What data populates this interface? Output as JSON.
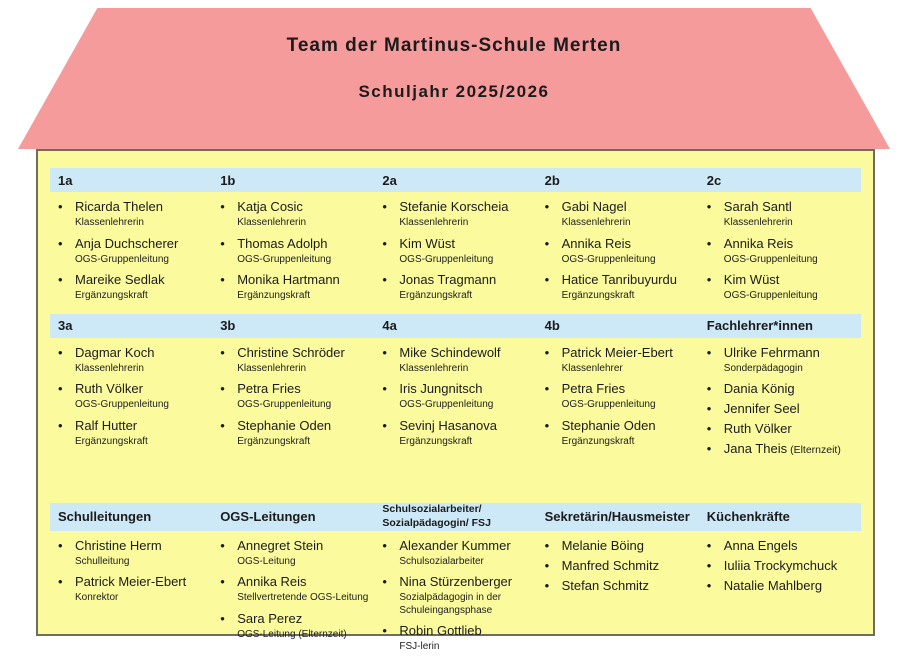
{
  "title": {
    "line1": "Team der Martinus-Schule Merten",
    "line2": "Schuljahr 2025/2026"
  },
  "colors": {
    "roof": "#f69b9b",
    "wall": "#fbfb9e",
    "header_band": "#cde9f8",
    "text": "#1b1b1b"
  },
  "rows": [
    {
      "columns": [
        {
          "header_lines": [
            "1a"
          ],
          "members": [
            {
              "name": "Ricarda Thelen",
              "role": "Klassenlehrerin"
            },
            {
              "name": "Anja Duchscherer",
              "role": "OGS-Gruppenleitung"
            },
            {
              "name": "Mareike Sedlak",
              "role": "Ergänzungskraft"
            }
          ]
        },
        {
          "header_lines": [
            "1b"
          ],
          "members": [
            {
              "name": "Katja Cosic",
              "role": "Klassenlehrerin"
            },
            {
              "name": "Thomas Adolph",
              "role": "OGS-Gruppenleitung"
            },
            {
              "name": "Monika Hartmann",
              "role": "Ergänzungskraft"
            }
          ]
        },
        {
          "header_lines": [
            "2a"
          ],
          "members": [
            {
              "name": "Stefanie Korscheia",
              "role": "Klassenlehrerin"
            },
            {
              "name": "Kim Wüst",
              "role": "OGS-Gruppenleitung"
            },
            {
              "name": "Jonas Tragmann",
              "role": "Ergänzungskraft"
            }
          ]
        },
        {
          "header_lines": [
            "2b"
          ],
          "members": [
            {
              "name": "Gabi Nagel",
              "role": "Klassenlehrerin"
            },
            {
              "name": "Annika Reis",
              "role": "OGS-Gruppenleitung"
            },
            {
              "name": "Hatice Tanribuyurdu",
              "role": "Ergänzungskraft"
            }
          ]
        },
        {
          "header_lines": [
            "2c"
          ],
          "members": [
            {
              "name": "Sarah Santl",
              "role": "Klassenlehrerin"
            },
            {
              "name": "Annika Reis",
              "role": "OGS-Gruppenleitung"
            },
            {
              "name": "Kim Wüst",
              "role": "OGS-Gruppenleitung"
            }
          ]
        }
      ]
    },
    {
      "columns": [
        {
          "header_lines": [
            "3a"
          ],
          "members": [
            {
              "name": "Dagmar Koch",
              "role": "Klassenlehrerin"
            },
            {
              "name": "Ruth Völker",
              "role": "OGS-Gruppenleitung"
            },
            {
              "name": "Ralf Hutter",
              "role": "Ergänzungskraft"
            }
          ]
        },
        {
          "header_lines": [
            "3b"
          ],
          "members": [
            {
              "name": "Christine Schröder",
              "role": "Klassenlehrerin"
            },
            {
              "name": "Petra Fries",
              "role": "OGS-Gruppenleitung"
            },
            {
              "name": "Stephanie Oden",
              "role": "Ergänzungskraft"
            }
          ]
        },
        {
          "header_lines": [
            "4a"
          ],
          "members": [
            {
              "name": "Mike Schindewolf",
              "role": "Klassenlehrerin"
            },
            {
              "name": "Iris Jungnitsch",
              "role": "OGS-Gruppenleitung"
            },
            {
              "name": "Sevinj Hasanova",
              "role": "Ergänzungskraft"
            }
          ]
        },
        {
          "header_lines": [
            "4b"
          ],
          "members": [
            {
              "name": "Patrick Meier-Ebert",
              "role": "Klassenlehrer"
            },
            {
              "name": "Petra Fries",
              "role": "OGS-Gruppenleitung"
            },
            {
              "name": "Stephanie Oden",
              "role": "Ergänzungskraft"
            }
          ]
        },
        {
          "header_lines": [
            "Fachlehrer*innen"
          ],
          "members": [
            {
              "name": "Ulrike Fehrmann",
              "role": "Sonderpädagogin"
            },
            {
              "name": "Dania König"
            },
            {
              "name": "Jennifer Seel"
            },
            {
              "name": "Ruth Völker"
            },
            {
              "name": "Jana Theis",
              "suffix": "(Elternzeit)"
            }
          ]
        }
      ]
    },
    {
      "columns": [
        {
          "header_lines": [
            "Schulleitungen"
          ],
          "members": [
            {
              "name": "Christine Herm",
              "role": "Schulleitung"
            },
            {
              "name": "Patrick Meier-Ebert",
              "role": "Konrektor"
            }
          ]
        },
        {
          "header_lines": [
            "OGS-Leitungen"
          ],
          "members": [
            {
              "name": "Annegret Stein",
              "role": "OGS-Leitung"
            },
            {
              "name": "Annika Reis",
              "role": "Stellvertretende OGS-Leitung"
            },
            {
              "name": "Sara Perez",
              "role": "OGS-Leitung (Elternzeit)"
            }
          ]
        },
        {
          "header_lines": [
            "Schulsozialarbeiter/",
            "Sozialpädagogin/ FSJ"
          ],
          "header_small": true,
          "members": [
            {
              "name": "Alexander Kummer",
              "role": "Schulsozialarbeiter"
            },
            {
              "name": "Nina Stürzenberger",
              "role": "Sozialpädagogin in der Schuleingangsphase"
            },
            {
              "name": "Robin Gottlieb",
              "role": "FSJ-lerin"
            }
          ]
        },
        {
          "header_lines": [
            "Sekretärin/Hausmeister"
          ],
          "members": [
            {
              "name": "Melanie Böing"
            },
            {
              "name": "Manfred Schmitz"
            },
            {
              "name": "Stefan Schmitz"
            }
          ]
        },
        {
          "header_lines": [
            "Küchenkräfte"
          ],
          "members": [
            {
              "name": "Anna Engels"
            },
            {
              "name": "Iuliia Trockymchuck"
            },
            {
              "name": "Natalie Mahlberg"
            }
          ]
        }
      ]
    }
  ]
}
